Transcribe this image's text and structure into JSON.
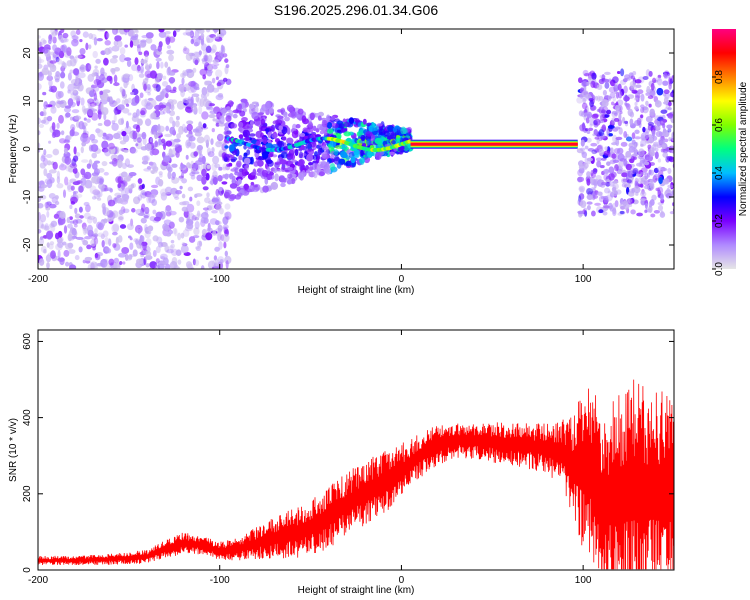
{
  "title": "S196.2025.296.01.34.G06",
  "chart_data": [
    {
      "type": "heatmap",
      "name": "spectrogram",
      "xlabel": "Height of straight line (km)",
      "ylabel": "Frequency (Hz)",
      "xlim": [
        -200,
        150
      ],
      "ylim": [
        -25,
        25
      ],
      "x_ticks": [
        -200,
        -100,
        0,
        100
      ],
      "y_ticks": [
        -20,
        -10,
        0,
        10,
        20
      ],
      "colorbar": {
        "label": "Normalized spectral amplitude",
        "range": [
          0,
          1
        ],
        "ticks": [
          0.0,
          0.2,
          0.4,
          0.6,
          0.8
        ],
        "colormap": [
          "#e6e6e6",
          "#b08aff",
          "#7a00ff",
          "#0000ff",
          "#00bfff",
          "#00ff80",
          "#80ff00",
          "#ffff00",
          "#ff8000",
          "#ff0000",
          "#ff0080"
        ]
      },
      "dominant_tone": {
        "x_start": 5,
        "x_end": 97,
        "frequency_hz": 1.0,
        "amplitude": 0.95
      },
      "regions": [
        {
          "x_range": [
            -200,
            -95
          ],
          "freq_range": [
            -25,
            25
          ],
          "amplitude": "low (0.05-0.2), scattered noise"
        },
        {
          "x_range": [
            -95,
            5
          ],
          "freq_range": [
            -10,
            10
          ],
          "amplitude": "medium, converging toward 0-3 Hz"
        },
        {
          "x_range": [
            100,
            150
          ],
          "freq_range": [
            -15,
            18
          ],
          "amplitude": "low-medium, scattered"
        }
      ]
    },
    {
      "type": "line",
      "name": "snr",
      "xlabel": "Height of straight line (km)",
      "ylabel": "SNR (10 * v/v)",
      "xlim": [
        -200,
        150
      ],
      "ylim": [
        0,
        630
      ],
      "x_ticks": [
        -200,
        -100,
        0,
        100
      ],
      "y_ticks": [
        0,
        200,
        400,
        600
      ],
      "color": "#ff0000",
      "series": [
        {
          "name": "SNR",
          "x": [
            -200,
            -180,
            -160,
            -140,
            -130,
            -120,
            -110,
            -100,
            -90,
            -80,
            -70,
            -60,
            -50,
            -40,
            -30,
            -20,
            -10,
            0,
            10,
            20,
            30,
            40,
            50,
            60,
            70,
            80,
            90,
            95,
            100,
            105,
            110,
            120,
            130,
            140,
            150
          ],
          "values": [
            25,
            25,
            28,
            35,
            55,
            70,
            65,
            50,
            55,
            70,
            85,
            95,
            110,
            140,
            175,
            200,
            230,
            260,
            300,
            330,
            340,
            340,
            335,
            330,
            325,
            320,
            300,
            270,
            260,
            250,
            180,
            200,
            210,
            200,
            220
          ],
          "spread": [
            10,
            10,
            12,
            15,
            20,
            25,
            20,
            20,
            25,
            35,
            45,
            55,
            60,
            70,
            70,
            70,
            70,
            60,
            50,
            45,
            40,
            40,
            45,
            50,
            50,
            55,
            80,
            120,
            180,
            200,
            190,
            220,
            250,
            230,
            240
          ]
        }
      ]
    }
  ]
}
